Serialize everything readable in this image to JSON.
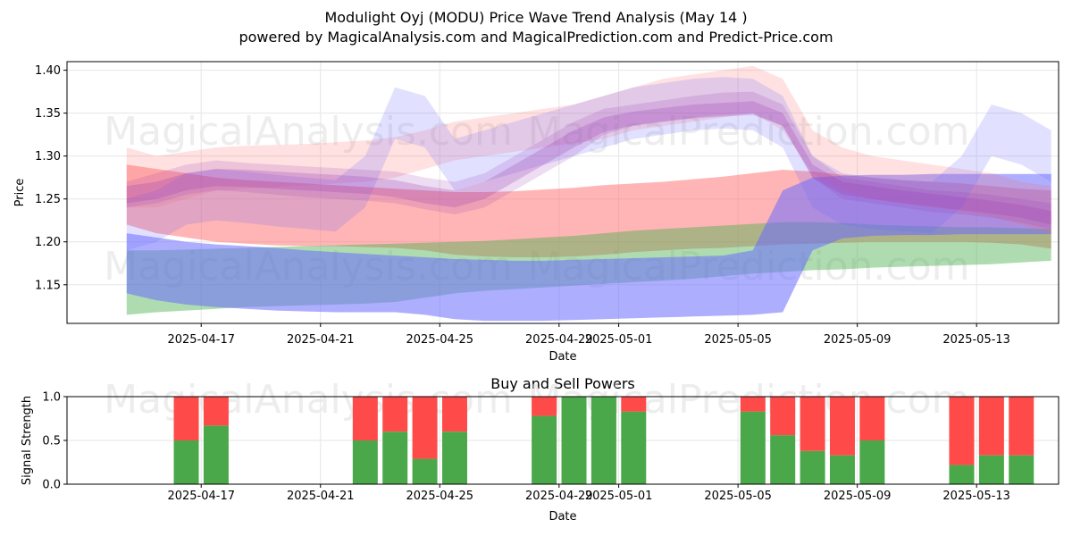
{
  "title": {
    "line1": "Modulight Oyj (MODU) Price Wave Trend Analysis (May 14 )",
    "line2": "powered by MagicalAnalysis.com and MagicalPrediction.com and Predict-Price.com"
  },
  "watermark": {
    "left": "MagicalAnalysis.com",
    "right": "MagicalPrediction.com"
  },
  "colors": {
    "red": "#ff6b6b",
    "green": "#4caf50",
    "blue": "#6b6bff",
    "purple": "#9b3bb5",
    "sell": "#ff4a4a",
    "buy": "#4aa84a"
  },
  "chart_data": [
    {
      "type": "area",
      "title": "",
      "xlabel": "Date",
      "ylabel": "Price",
      "ylim": [
        1.105,
        1.41
      ],
      "grid": true,
      "x_ticks": [
        "2025-04-17",
        "2025-04-21",
        "2025-04-25",
        "2025-04-29",
        "2025-05-01",
        "2025-05-05",
        "2025-05-09",
        "2025-05-13"
      ],
      "y_ticks": [
        "1.15",
        "1.20",
        "1.25",
        "1.30",
        "1.35",
        "1.40"
      ],
      "y_tick_values": [
        1.15,
        1.2,
        1.25,
        1.3,
        1.35,
        1.4
      ],
      "dates": [
        "2025-04-14",
        "2025-04-15",
        "2025-04-16",
        "2025-04-17",
        "2025-04-18",
        "2025-04-19",
        "2025-04-20",
        "2025-04-21",
        "2025-04-22",
        "2025-04-23",
        "2025-04-24",
        "2025-04-25",
        "2025-04-26",
        "2025-04-27",
        "2025-04-28",
        "2025-04-29",
        "2025-04-30",
        "2025-05-01",
        "2025-05-02",
        "2025-05-03",
        "2025-05-04",
        "2025-05-05",
        "2025-05-06",
        "2025-05-07",
        "2025-05-08",
        "2025-05-09",
        "2025-05-10",
        "2025-05-11",
        "2025-05-12",
        "2025-05-13",
        "2025-05-14",
        "2025-05-15"
      ],
      "bands": [
        {
          "color": "red",
          "opacity": 0.5,
          "upper": [
            1.29,
            1.285,
            1.28,
            1.275,
            1.272,
            1.27,
            1.268,
            1.266,
            1.264,
            1.262,
            1.26,
            1.258,
            1.258,
            1.259,
            1.261,
            1.263,
            1.266,
            1.268,
            1.27,
            1.273,
            1.276,
            1.28,
            1.284,
            1.282,
            1.278,
            1.275,
            1.272,
            1.27,
            1.268,
            1.265,
            1.262,
            1.26
          ],
          "lower": [
            1.22,
            1.21,
            1.205,
            1.2,
            1.198,
            1.196,
            1.195,
            1.195,
            1.194,
            1.193,
            1.19,
            1.185,
            1.183,
            1.182,
            1.182,
            1.183,
            1.185,
            1.188,
            1.19,
            1.192,
            1.193,
            1.195,
            1.197,
            1.198,
            1.199,
            1.2,
            1.2,
            1.2,
            1.2,
            1.199,
            1.197,
            1.192
          ]
        },
        {
          "color": "green",
          "opacity": 0.45,
          "upper": [
            1.19,
            1.19,
            1.191,
            1.192,
            1.193,
            1.194,
            1.195,
            1.196,
            1.197,
            1.198,
            1.199,
            1.2,
            1.201,
            1.203,
            1.205,
            1.207,
            1.21,
            1.213,
            1.215,
            1.217,
            1.219,
            1.221,
            1.223,
            1.223,
            1.222,
            1.22,
            1.219,
            1.218,
            1.217,
            1.217,
            1.216,
            1.215
          ],
          "lower": [
            1.115,
            1.118,
            1.12,
            1.122,
            1.124,
            1.125,
            1.126,
            1.127,
            1.128,
            1.13,
            1.135,
            1.14,
            1.143,
            1.145,
            1.147,
            1.149,
            1.151,
            1.153,
            1.155,
            1.157,
            1.16,
            1.163,
            1.165,
            1.167,
            1.168,
            1.17,
            1.171,
            1.172,
            1.173,
            1.174,
            1.176,
            1.178
          ]
        },
        {
          "color": "blue",
          "opacity": 0.55,
          "upper": [
            1.21,
            1.205,
            1.2,
            1.197,
            1.195,
            1.193,
            1.19,
            1.188,
            1.186,
            1.184,
            1.182,
            1.18,
            1.179,
            1.178,
            1.178,
            1.179,
            1.18,
            1.181,
            1.182,
            1.183,
            1.184,
            1.19,
            1.26,
            1.275,
            1.277,
            1.278,
            1.278,
            1.279,
            1.279,
            1.279,
            1.279,
            1.279
          ],
          "lower": [
            1.14,
            1.132,
            1.127,
            1.124,
            1.122,
            1.12,
            1.119,
            1.118,
            1.118,
            1.118,
            1.115,
            1.11,
            1.108,
            1.108,
            1.108,
            1.109,
            1.11,
            1.111,
            1.112,
            1.113,
            1.114,
            1.115,
            1.118,
            1.19,
            1.204,
            1.207,
            1.208,
            1.208,
            1.209,
            1.209,
            1.209,
            1.209
          ]
        },
        {
          "color": "red",
          "opacity": 0.2,
          "upper": [
            1.31,
            1.3,
            1.305,
            1.31,
            1.312,
            1.313,
            1.314,
            1.316,
            1.318,
            1.322,
            1.33,
            1.34,
            1.345,
            1.35,
            1.355,
            1.36,
            1.37,
            1.38,
            1.39,
            1.395,
            1.4,
            1.405,
            1.39,
            1.33,
            1.31,
            1.3,
            1.295,
            1.29,
            1.285,
            1.28,
            1.27,
            1.265
          ],
          "lower": [
            1.24,
            1.24,
            1.25,
            1.26,
            1.262,
            1.264,
            1.266,
            1.268,
            1.27,
            1.275,
            1.285,
            1.295,
            1.3,
            1.305,
            1.31,
            1.315,
            1.32,
            1.33,
            1.335,
            1.34,
            1.345,
            1.35,
            1.33,
            1.28,
            1.26,
            1.25,
            1.245,
            1.24,
            1.235,
            1.23,
            1.22,
            1.21
          ]
        },
        {
          "color": "blue",
          "opacity": 0.2,
          "upper": [
            1.25,
            1.26,
            1.28,
            1.285,
            1.282,
            1.278,
            1.275,
            1.272,
            1.3,
            1.38,
            1.37,
            1.32,
            1.33,
            1.34,
            1.35,
            1.36,
            1.37,
            1.38,
            1.385,
            1.39,
            1.392,
            1.39,
            1.37,
            1.3,
            1.28,
            1.275,
            1.272,
            1.27,
            1.3,
            1.36,
            1.35,
            1.33
          ],
          "lower": [
            1.19,
            1.2,
            1.22,
            1.225,
            1.222,
            1.218,
            1.215,
            1.212,
            1.24,
            1.32,
            1.31,
            1.26,
            1.27,
            1.28,
            1.29,
            1.3,
            1.31,
            1.32,
            1.325,
            1.33,
            1.332,
            1.33,
            1.31,
            1.24,
            1.22,
            1.215,
            1.212,
            1.21,
            1.24,
            1.3,
            1.29,
            1.27
          ]
        },
        {
          "color": "purple",
          "opacity": 0.18,
          "upper": [
            1.27,
            1.28,
            1.29,
            1.295,
            1.292,
            1.29,
            1.288,
            1.286,
            1.284,
            1.282,
            1.275,
            1.27,
            1.28,
            1.3,
            1.32,
            1.34,
            1.355,
            1.36,
            1.365,
            1.37,
            1.374,
            1.375,
            1.36,
            1.3,
            1.275,
            1.27,
            1.265,
            1.26,
            1.258,
            1.255,
            1.25,
            1.245
          ],
          "lower": [
            1.24,
            1.245,
            1.255,
            1.26,
            1.258,
            1.255,
            1.252,
            1.25,
            1.248,
            1.245,
            1.238,
            1.232,
            1.24,
            1.26,
            1.28,
            1.3,
            1.325,
            1.335,
            1.34,
            1.345,
            1.348,
            1.35,
            1.335,
            1.275,
            1.25,
            1.245,
            1.24,
            1.235,
            1.232,
            1.228,
            1.222,
            1.215
          ]
        },
        {
          "color": "purple",
          "opacity": 0.25,
          "upper": [
            1.265,
            1.27,
            1.28,
            1.285,
            1.284,
            1.282,
            1.28,
            1.278,
            1.276,
            1.272,
            1.265,
            1.26,
            1.27,
            1.29,
            1.31,
            1.33,
            1.345,
            1.352,
            1.356,
            1.36,
            1.362,
            1.364,
            1.35,
            1.29,
            1.27,
            1.265,
            1.26,
            1.256,
            1.252,
            1.248,
            1.243,
            1.236
          ],
          "lower": [
            1.245,
            1.25,
            1.26,
            1.265,
            1.264,
            1.262,
            1.26,
            1.258,
            1.256,
            1.252,
            1.245,
            1.24,
            1.25,
            1.27,
            1.29,
            1.31,
            1.328,
            1.336,
            1.34,
            1.344,
            1.346,
            1.348,
            1.335,
            1.275,
            1.255,
            1.25,
            1.245,
            1.241,
            1.237,
            1.233,
            1.228,
            1.22
          ]
        }
      ]
    },
    {
      "type": "bar",
      "title": "Buy and Sell Powers",
      "xlabel": "Date",
      "ylabel": "Signal Strength",
      "ylim": [
        0,
        1.0
      ],
      "grid": true,
      "x_ticks": [
        "2025-04-17",
        "2025-04-21",
        "2025-04-25",
        "2025-04-29",
        "2025-05-01",
        "2025-05-05",
        "2025-05-09",
        "2025-05-13"
      ],
      "y_ticks": [
        "0.0",
        "0.5",
        "1.0"
      ],
      "y_tick_values": [
        0.0,
        0.5,
        1.0
      ],
      "categories": [
        "2025-04-16",
        "2025-04-17",
        "2025-04-22",
        "2025-04-23",
        "2025-04-24",
        "2025-04-25",
        "2025-04-28",
        "2025-04-29",
        "2025-04-30",
        "2025-05-01",
        "2025-05-05",
        "2025-05-06",
        "2025-05-07",
        "2025-05-08",
        "2025-05-09",
        "2025-05-12",
        "2025-05-13",
        "2025-05-14"
      ],
      "series": [
        {
          "name": "Buy",
          "values": [
            0.5,
            0.67,
            0.5,
            0.6,
            0.29,
            0.6,
            0.78,
            1.0,
            1.0,
            0.83,
            0.83,
            0.56,
            0.38,
            0.33,
            0.5,
            0.22,
            0.33,
            0.33
          ]
        },
        {
          "name": "Sell",
          "values": [
            0.5,
            0.33,
            0.5,
            0.4,
            0.71,
            0.4,
            0.22,
            0.0,
            0.0,
            0.17,
            0.17,
            0.44,
            0.62,
            0.67,
            0.5,
            0.78,
            0.67,
            0.67
          ]
        }
      ]
    }
  ]
}
